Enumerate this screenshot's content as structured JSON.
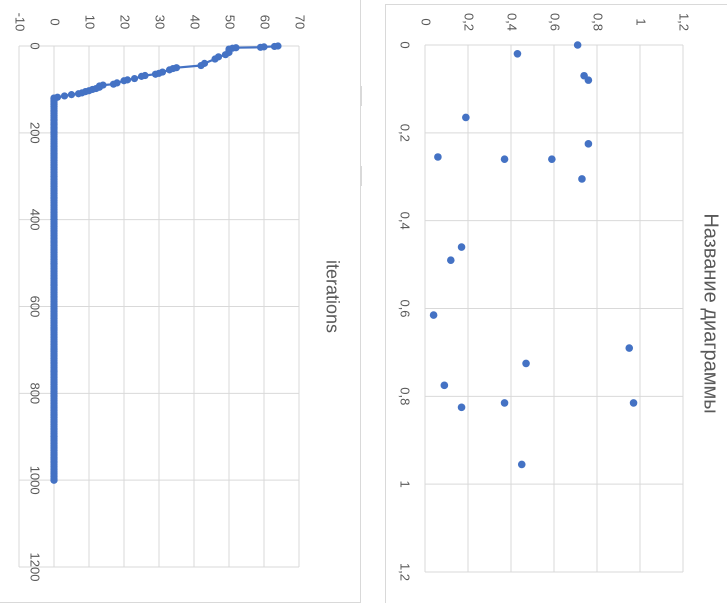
{
  "charts": {
    "left_title": "iterations",
    "right_title": "Название диаграммы"
  },
  "colors": {
    "series": "#4472c4",
    "grid": "#d9d9d9",
    "text": "#595959"
  },
  "chart_data": [
    {
      "type": "line",
      "title": "iterations",
      "orientation": "rotated-90-clockwise",
      "xlim": [
        0,
        1200
      ],
      "ylim": [
        -10,
        70
      ],
      "x_ticks": [
        "0",
        "200",
        "400",
        "600",
        "800",
        "1000",
        "1200"
      ],
      "y_ticks": [
        "-10",
        "0",
        "10",
        "20",
        "30",
        "40",
        "50",
        "60",
        "70"
      ],
      "grid": true,
      "legend": "none",
      "markers": true,
      "series": [
        {
          "x": [
            0,
            1,
            2,
            3,
            4,
            5,
            7,
            10,
            15,
            20,
            25,
            30,
            40,
            45,
            50,
            52,
            55,
            60,
            63,
            65,
            68,
            70,
            75,
            78,
            80,
            85,
            88,
            90,
            92,
            95,
            98,
            100,
            103,
            105,
            108,
            110,
            112,
            115,
            118,
            120,
            125,
            130,
            135,
            140,
            150,
            160,
            170,
            180,
            190,
            200,
            250,
            300,
            350,
            400,
            450,
            500,
            550,
            600,
            650,
            700,
            750,
            800,
            850,
            900,
            950,
            1000
          ],
          "y": [
            64,
            63,
            60,
            59,
            52,
            51,
            50,
            50,
            50,
            49,
            47,
            46,
            43,
            42,
            35,
            34,
            33,
            31,
            30,
            29,
            26,
            25,
            23,
            21,
            20,
            18,
            17,
            14,
            13,
            13,
            12,
            11,
            10,
            9,
            8,
            7,
            5,
            3,
            1,
            0,
            0,
            0,
            0,
            0,
            0,
            0,
            0,
            0,
            0,
            0,
            0,
            0,
            0,
            0,
            0,
            0,
            0,
            0,
            0,
            0,
            0,
            0,
            0,
            0,
            0,
            0
          ]
        }
      ]
    },
    {
      "type": "scatter",
      "title": "Название диаграммы",
      "orientation": "rotated-90-clockwise",
      "xlim": [
        0,
        1.2
      ],
      "ylim": [
        0,
        1.2
      ],
      "x_ticks": [
        "0",
        "0,2",
        "0,4",
        "0,6",
        "0,8",
        "1",
        "1,2"
      ],
      "y_ticks": [
        "0",
        "0,2",
        "0,4",
        "0,6",
        "0,8",
        "1",
        "1,2"
      ],
      "grid": true,
      "legend": "none",
      "series": [
        {
          "x": [
            0.0,
            0.02,
            0.07,
            0.08,
            0.165,
            0.225,
            0.255,
            0.26,
            0.26,
            0.305,
            0.46,
            0.49,
            0.615,
            0.69,
            0.725,
            0.775,
            0.815,
            0.815,
            0.825,
            0.955
          ],
          "y": [
            0.71,
            0.43,
            0.74,
            0.76,
            0.19,
            0.76,
            0.06,
            0.37,
            0.59,
            0.73,
            0.17,
            0.12,
            0.04,
            0.95,
            0.47,
            0.09,
            0.37,
            0.97,
            0.17,
            0.45
          ]
        }
      ]
    }
  ]
}
